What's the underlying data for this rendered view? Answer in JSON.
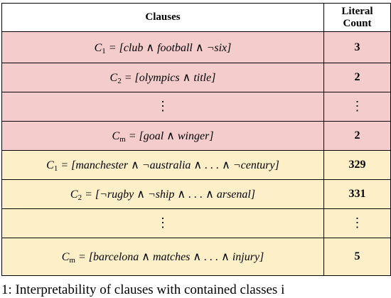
{
  "table": {
    "header": {
      "clauses": "Clauses",
      "count_line1": "Literal",
      "count_line2": "Count"
    },
    "rows": [
      {
        "group": "pink",
        "var": "C",
        "sub": "1",
        "body": "= [club ∧ football ∧ ¬six]",
        "count": "3"
      },
      {
        "group": "pink",
        "var": "C",
        "sub": "2",
        "body": "= [olympics ∧ title]",
        "count": "2"
      },
      {
        "group": "pink",
        "vdots": "⋮",
        "count_vdots": "⋮"
      },
      {
        "group": "pink",
        "var": "C",
        "sub": "m",
        "body": "= [goal ∧ winger]",
        "count": "2"
      },
      {
        "group": "yellow",
        "var": "C",
        "sub": "1",
        "body": "= [manchester ∧ ¬australia ∧ . . . ∧ ¬century]",
        "count": "329"
      },
      {
        "group": "yellow",
        "var": "C",
        "sub": "2",
        "body": "= [¬rugby ∧ ¬ship ∧ . . . ∧ arsenal]",
        "count": "331"
      },
      {
        "group": "yellow",
        "vdots": "⋮",
        "count_vdots": "⋮"
      },
      {
        "group": "yellow",
        "var": "C",
        "sub": "m",
        "body": "= [barcelona ∧ matches ∧ . . . ∧ injury]",
        "count": "5"
      }
    ]
  },
  "caption": "1: Interpretability of clauses with contained classes i"
}
